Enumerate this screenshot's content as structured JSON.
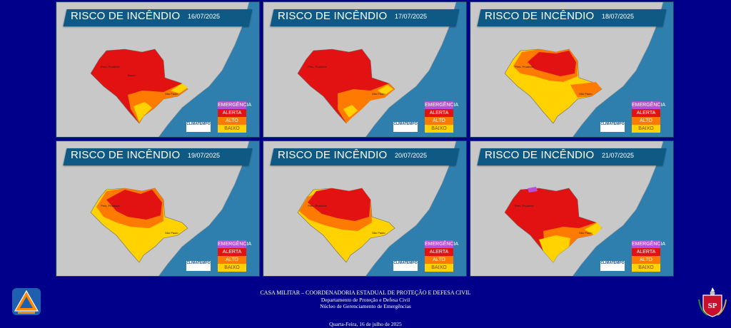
{
  "colors": {
    "background": "#00008b",
    "ocean": "#2f7fae",
    "land": "#c8c8c8",
    "emergencia": "#b84fd6",
    "alerta": "#e31212",
    "alto": "#ff7a00",
    "baixo": "#ffd200"
  },
  "panels": [
    {
      "title": "RISCO DE INCÊNDIO",
      "date": "16/07/2025",
      "legend": {
        "emergencia": "EMERGÊNCIA",
        "alerta": "ALERTA",
        "alto": "ALTO",
        "baixo": "BAIXO"
      },
      "logo": "CLIMATEMPO"
    },
    {
      "title": "RISCO DE INCÊNDIO",
      "date": "17/07/2025",
      "legend": {
        "emergencia": "EMERGÊNCIA",
        "alerta": "ALERTA",
        "alto": "ALTO",
        "baixo": "BAIXO"
      },
      "logo": "CLIMATEMPO"
    },
    {
      "title": "RISCO DE INCÊNDIO",
      "date": "18/07/2025",
      "legend": {
        "emergencia": "EMERGÊNCIA",
        "alerta": "ALERTA",
        "alto": "ALTO",
        "baixo": "BAIXO"
      },
      "logo": "CLIMATEMPO"
    },
    {
      "title": "RISCO DE INCÊNDIO",
      "date": "19/07/2025",
      "legend": {
        "emergencia": "EMERGÊNCIA",
        "alerta": "ALERTA",
        "alto": "ALTO",
        "baixo": "BAIXO"
      },
      "logo": "CLIMATEMPO"
    },
    {
      "title": "RISCO DE INCÊNDIO",
      "date": "20/07/2025",
      "legend": {
        "emergencia": "EMERGÊNCIA",
        "alerta": "ALERTA",
        "alto": "ALTO",
        "baixo": "BAIXO"
      },
      "logo": "CLIMATEMPO"
    },
    {
      "title": "RISCO DE INCÊNDIO",
      "date": "21/07/2025",
      "legend": {
        "emergencia": "EMERGÊNCIA",
        "alerta": "ALERTA",
        "alto": "ALTO",
        "baixo": "BAIXO"
      },
      "logo": "CLIMATEMPO"
    }
  ],
  "footer": {
    "line1": "CASA MILITAR – COORDENADORIA ESTADUAL DE PROTEÇÃO E DEFESA CIVIL",
    "line2": "Departamento de Proteção e Defesa Civil",
    "line3": "Núcleo de Gerenciamento de Emergências",
    "date": "Quarta-Feira, 16 de julho de 2025"
  },
  "logos": {
    "left": "defesa-civil-logo",
    "right": "sp-coat-of-arms"
  }
}
